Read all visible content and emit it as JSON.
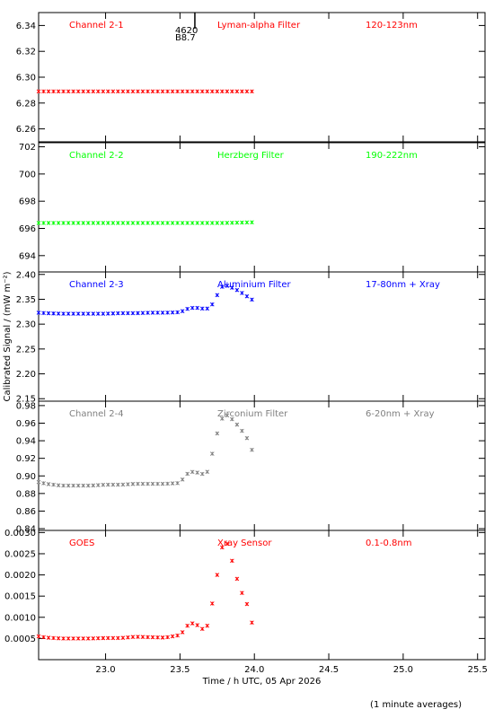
{
  "footnote": "(1 minute averages)",
  "chart_data": {
    "type": "scatter",
    "xlabel": "Time / h UTC, 05 Apr 2026",
    "ylabel": "Calibrated Signal / (mW m⁻²)",
    "xlim": [
      22.55,
      25.55
    ],
    "xticks": [
      "23.0",
      "23.5",
      "24.0",
      "24.5",
      "25.0",
      "25.5"
    ],
    "xtick_values": [
      23.0,
      23.5,
      24.0,
      24.5,
      25.0,
      25.5
    ],
    "marker_annotation": {
      "x": 23.6,
      "lines": [
        "4620",
        "B8.7"
      ]
    },
    "panels": [
      {
        "label": "Channel 2-1",
        "filter": "Lyman-alpha Filter",
        "band": "120-123nm",
        "color": "#ff0000",
        "ylim": [
          6.25,
          6.35
        ],
        "yticks": [
          "6.26",
          "6.28",
          "6.30",
          "6.32",
          "6.34"
        ],
        "ytick_values": [
          6.26,
          6.28,
          6.3,
          6.32,
          6.34
        ],
        "points": [
          [
            22.55,
            6.289
          ],
          [
            22.7,
            6.289
          ],
          [
            22.9,
            6.289
          ],
          [
            23.1,
            6.289
          ],
          [
            23.3,
            6.289
          ],
          [
            23.5,
            6.289
          ],
          [
            23.7,
            6.289
          ],
          [
            23.9,
            6.289
          ],
          [
            23.99,
            6.289
          ]
        ]
      },
      {
        "label": "Channel 2-2",
        "filter": "Herzberg Filter",
        "band": "190-222nm",
        "color": "#00ff00",
        "ylim": [
          692.8,
          702.3
        ],
        "yticks": [
          "694",
          "696",
          "698",
          "700",
          "702"
        ],
        "ytick_values": [
          694,
          696,
          698,
          700,
          702
        ],
        "points": [
          [
            22.55,
            696.4
          ],
          [
            22.8,
            696.4
          ],
          [
            23.0,
            696.4
          ],
          [
            23.3,
            696.4
          ],
          [
            23.6,
            696.4
          ],
          [
            23.8,
            696.4
          ],
          [
            23.99,
            696.45
          ]
        ]
      },
      {
        "label": "Channel 2-3",
        "filter": "Aluminium Filter",
        "band": "17-80nm + Xray",
        "color": "#0000ff",
        "ylim": [
          2.145,
          2.405
        ],
        "yticks": [
          "2.15",
          "2.20",
          "2.25",
          "2.30",
          "2.35",
          "2.40"
        ],
        "ytick_values": [
          2.15,
          2.2,
          2.25,
          2.3,
          2.35,
          2.4
        ],
        "points": [
          [
            22.55,
            2.323
          ],
          [
            22.6,
            2.322
          ],
          [
            22.7,
            2.321
          ],
          [
            22.8,
            2.321
          ],
          [
            22.9,
            2.321
          ],
          [
            23.0,
            2.321
          ],
          [
            23.1,
            2.322
          ],
          [
            23.2,
            2.322
          ],
          [
            23.3,
            2.323
          ],
          [
            23.4,
            2.323
          ],
          [
            23.5,
            2.324
          ],
          [
            23.53,
            2.328
          ],
          [
            23.56,
            2.332
          ],
          [
            23.6,
            2.333
          ],
          [
            23.64,
            2.332
          ],
          [
            23.67,
            2.33
          ],
          [
            23.7,
            2.333
          ],
          [
            23.73,
            2.345
          ],
          [
            23.76,
            2.365
          ],
          [
            23.79,
            2.378
          ],
          [
            23.82,
            2.377
          ],
          [
            23.86,
            2.372
          ],
          [
            23.9,
            2.366
          ],
          [
            23.94,
            2.358
          ],
          [
            23.99,
            2.348
          ]
        ]
      },
      {
        "label": "Channel 2-4",
        "filter": "Zirconium Filter",
        "band": "6-20nm + Xray",
        "color": "#808080",
        "ylim": [
          0.838,
          0.985
        ],
        "yticks": [
          "0.84",
          "0.86",
          "0.88",
          "0.90",
          "0.92",
          "0.94",
          "0.96",
          "0.98"
        ],
        "ytick_values": [
          0.84,
          0.86,
          0.88,
          0.9,
          0.92,
          0.94,
          0.96,
          0.98
        ],
        "points": [
          [
            22.55,
            0.893
          ],
          [
            22.6,
            0.891
          ],
          [
            22.7,
            0.889
          ],
          [
            22.8,
            0.889
          ],
          [
            22.9,
            0.889
          ],
          [
            23.0,
            0.89
          ],
          [
            23.1,
            0.89
          ],
          [
            23.2,
            0.891
          ],
          [
            23.3,
            0.891
          ],
          [
            23.4,
            0.891
          ],
          [
            23.5,
            0.892
          ],
          [
            23.53,
            0.899
          ],
          [
            23.56,
            0.904
          ],
          [
            23.6,
            0.905
          ],
          [
            23.64,
            0.902
          ],
          [
            23.68,
            0.903
          ],
          [
            23.7,
            0.913
          ],
          [
            23.73,
            0.935
          ],
          [
            23.76,
            0.955
          ],
          [
            23.79,
            0.968
          ],
          [
            23.82,
            0.969
          ],
          [
            23.86,
            0.963
          ],
          [
            23.9,
            0.955
          ],
          [
            23.94,
            0.946
          ],
          [
            23.97,
            0.937
          ],
          [
            23.99,
            0.926
          ]
        ]
      },
      {
        "label": "GOES",
        "filter": "Xray Sensor",
        "band": "0.1-0.8nm",
        "color": "#ff0000",
        "ylim": [
          0.0,
          0.00305
        ],
        "yticks": [
          "0.0005",
          "0.0010",
          "0.0015",
          "0.0020",
          "0.0025",
          "0.0030"
        ],
        "ytick_values": [
          0.0005,
          0.001,
          0.0015,
          0.002,
          0.0025,
          0.003
        ],
        "points": [
          [
            22.55,
            0.00055
          ],
          [
            22.6,
            0.00052
          ],
          [
            22.7,
            0.0005
          ],
          [
            22.8,
            0.0005
          ],
          [
            22.9,
            0.0005
          ],
          [
            23.0,
            0.00051
          ],
          [
            23.1,
            0.00051
          ],
          [
            23.2,
            0.00054
          ],
          [
            23.3,
            0.00053
          ],
          [
            23.4,
            0.00052
          ],
          [
            23.5,
            0.00058
          ],
          [
            23.53,
            0.0007
          ],
          [
            23.56,
            0.00085
          ],
          [
            23.6,
            0.00086
          ],
          [
            23.64,
            0.00075
          ],
          [
            23.67,
            0.00068
          ],
          [
            23.7,
            0.00095
          ],
          [
            23.72,
            0.0014
          ],
          [
            23.75,
            0.002
          ],
          [
            23.78,
            0.0026
          ],
          [
            23.8,
            0.0029
          ],
          [
            23.83,
            0.0026
          ],
          [
            23.86,
            0.0022
          ],
          [
            23.9,
            0.0017
          ],
          [
            23.94,
            0.0014
          ],
          [
            23.98,
            0.00105
          ],
          [
            24.0,
            0.0
          ]
        ]
      }
    ]
  }
}
